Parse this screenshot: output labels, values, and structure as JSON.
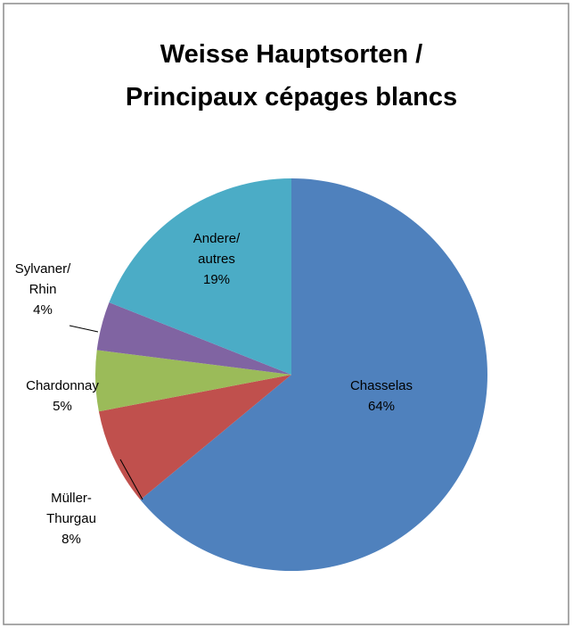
{
  "chart_data": {
    "type": "pie",
    "title": "Weisse Hauptsorten / Principaux cépages blancs",
    "categories": [
      "Chasselas",
      "Müller-Thurgau",
      "Chardonnay",
      "Sylvaner/ Rhin",
      "Andere/ autres"
    ],
    "values": [
      64,
      8,
      5,
      4,
      19
    ],
    "value_labels": [
      "64%",
      "8%",
      "5%",
      "4%",
      "19%"
    ],
    "colors": [
      "#4f81bd",
      "#c0504d",
      "#9bbb59",
      "#8064a2",
      "#4bacc6"
    ]
  }
}
